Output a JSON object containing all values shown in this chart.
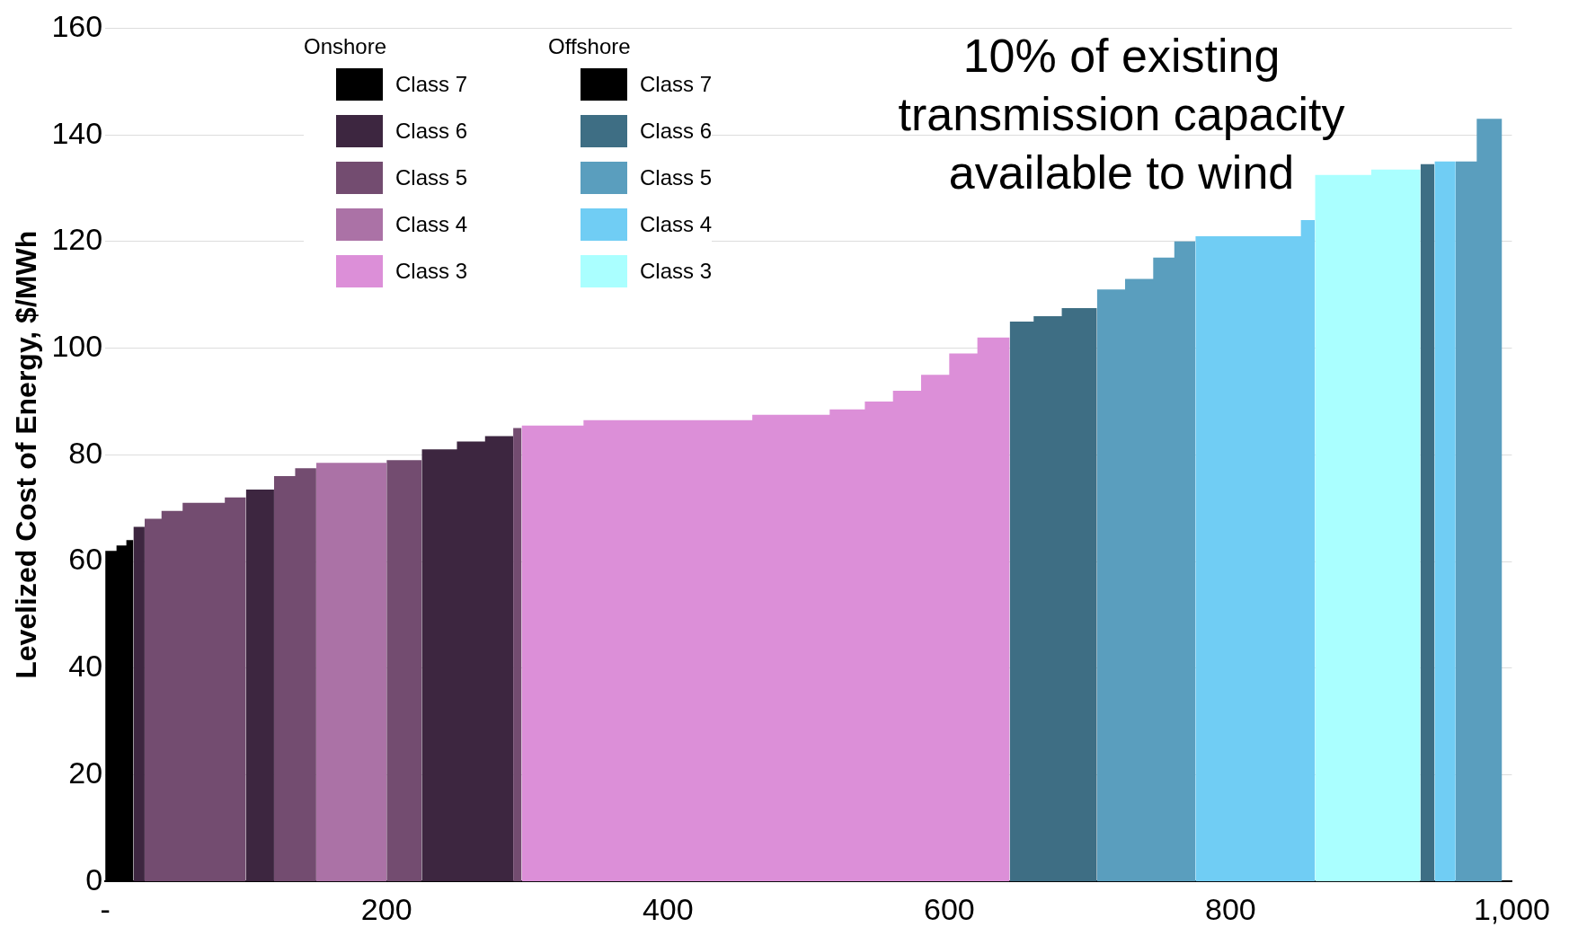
{
  "chart_data": {
    "type": "area",
    "ylabel": "Levelized Cost of Energy, $/MWh",
    "annotations": [
      "10% of existing transmission capacity available to wind",
      "Onshore",
      "Offshore"
    ],
    "xlim": [
      0,
      1000
    ],
    "xticks": [
      {
        "value": 0,
        "label": "-"
      },
      200,
      400,
      600,
      800,
      {
        "value": 1000,
        "label": "1,000"
      }
    ],
    "ylim": [
      0,
      160
    ],
    "yticks": [
      0,
      20,
      40,
      60,
      80,
      100,
      120,
      140,
      160
    ],
    "grid": "y",
    "legend": "top",
    "series": [
      {
        "name": "Class 7",
        "color": "#000000",
        "x": [
          0,
          8,
          8,
          15,
          15,
          20
        ],
        "values": [
          62,
          62,
          63,
          63,
          64,
          64
        ]
      },
      {
        "name": "Class 6",
        "color": "#3d2640",
        "x": [
          20,
          28,
          64,
          100,
          120,
          172,
          225,
          250,
          250,
          270,
          270,
          290
        ],
        "values": [
          66.5,
          66.5,
          null,
          73.5,
          73.5,
          null,
          81,
          81,
          82.5,
          82.5,
          83.5,
          83.5
        ]
      },
      {
        "name": "Class 5",
        "color": "#734c70",
        "x": [
          28,
          40,
          40,
          55,
          55,
          85,
          85,
          100,
          110,
          120,
          135,
          135,
          150,
          175,
          200,
          225,
          258,
          290,
          296
        ],
        "values": [
          68,
          68,
          69.5,
          69.5,
          71,
          71,
          72,
          72,
          null,
          76,
          76,
          77.5,
          77.5,
          null,
          79,
          79,
          null,
          85,
          85
        ]
      },
      {
        "name": "Class 4",
        "color": "#ab72a6",
        "x": [
          150,
          200
        ],
        "values": [
          78.5,
          78.5
        ]
      },
      {
        "name": "Class 3",
        "color": "#dc8fd8",
        "x": [
          296,
          340,
          340,
          460,
          460,
          515,
          515,
          540,
          540,
          560,
          560,
          580,
          580,
          600,
          600,
          620,
          620,
          643
        ],
        "values": [
          85.5,
          85.5,
          86.5,
          86.5,
          87.5,
          87.5,
          88.5,
          88.5,
          90,
          90,
          92,
          92,
          95,
          95,
          99,
          99,
          102,
          102
        ]
      },
      {
        "name": "Class 7",
        "color": "#000000"
      },
      {
        "name": "Class 6",
        "color": "#3e6e84",
        "x": [
          643,
          660,
          660,
          680,
          680,
          705,
          820,
          935,
          945
        ],
        "values": [
          105,
          105,
          106,
          106,
          107.5,
          107.5,
          null,
          134.5,
          134.5
        ]
      },
      {
        "name": "Class 5",
        "color": "#5a9ebe",
        "x": [
          705,
          725,
          725,
          745,
          745,
          760,
          760,
          775,
          868,
          960,
          975,
          975,
          993
        ],
        "values": [
          111,
          111,
          113,
          113,
          117,
          117,
          120,
          120,
          null,
          135,
          135,
          143,
          143
        ]
      },
      {
        "name": "Class 4",
        "color": "#70cdf4",
        "x": [
          775,
          850,
          850,
          860,
          902,
          945,
          960
        ],
        "values": [
          121,
          121,
          124,
          124,
          null,
          135,
          135
        ]
      },
      {
        "name": "Class 3",
        "color": "#aaffff",
        "x": [
          860,
          900,
          900,
          935
        ],
        "values": [
          132.5,
          132.5,
          133.5,
          133.5
        ]
      }
    ]
  }
}
